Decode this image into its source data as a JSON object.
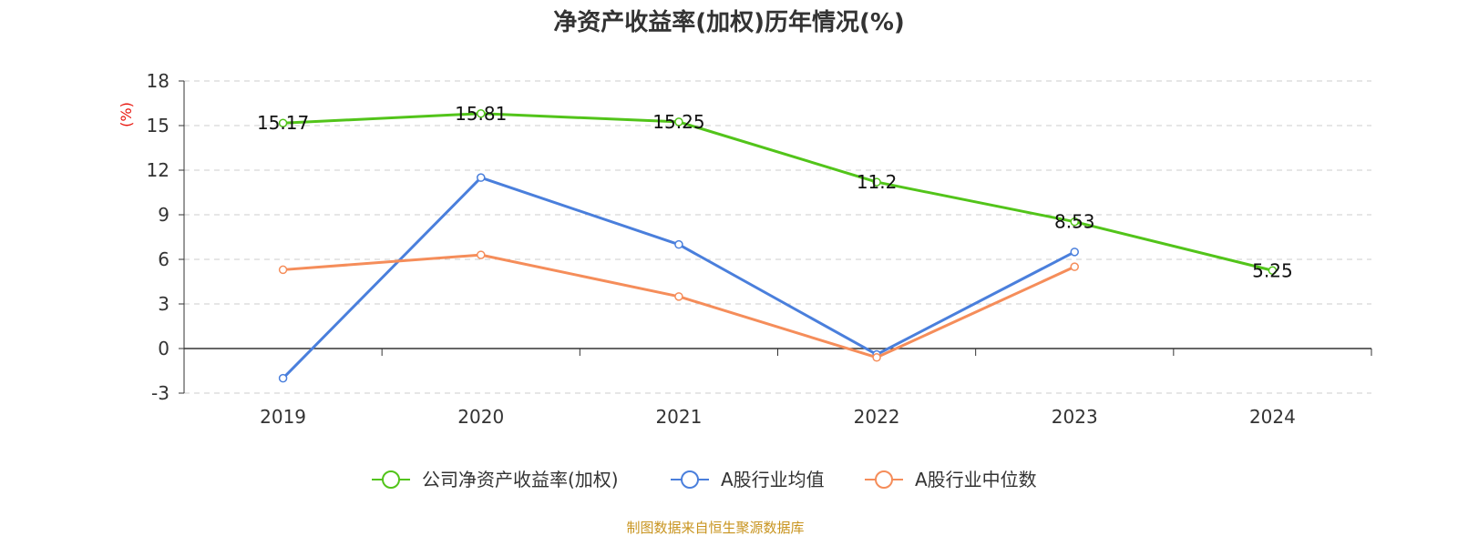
{
  "chart_data": {
    "type": "line",
    "title": "净资产收益率(加权)历年情况(%)",
    "ylabel": "(%)",
    "categories": [
      "2019",
      "2020",
      "2021",
      "2022",
      "2023",
      "2024"
    ],
    "ylim": [
      -3,
      18
    ],
    "yticks": [
      -3,
      0,
      3,
      6,
      9,
      12,
      15,
      18
    ],
    "grid": true,
    "legend_position": "bottom",
    "series": [
      {
        "name": "公司净资产收益率(加权)",
        "color": "#52c41a",
        "values": [
          15.17,
          15.81,
          15.25,
          11.2,
          8.53,
          5.25
        ],
        "show_labels": true
      },
      {
        "name": "A股行业均值",
        "color": "#4a7fdc",
        "values": [
          -2.0,
          11.5,
          7.0,
          -0.4,
          6.5,
          null
        ],
        "show_labels": false
      },
      {
        "name": "A股行业中位数",
        "color": "#f58d5a",
        "values": [
          5.3,
          6.3,
          3.5,
          -0.6,
          5.5,
          null
        ],
        "show_labels": false
      }
    ],
    "source": "制图数据来自恒生聚源数据库"
  }
}
